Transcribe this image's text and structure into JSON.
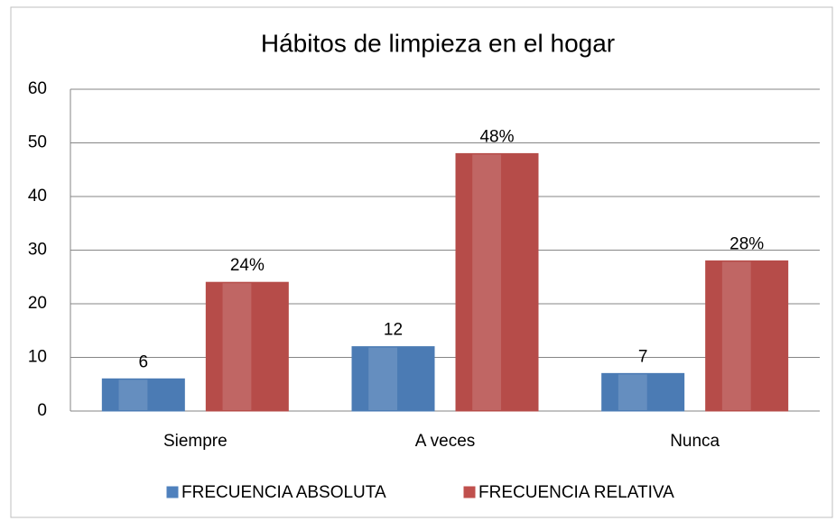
{
  "chart_data": {
    "type": "bar",
    "title": "Hábitos de limpieza en el hogar",
    "categories": [
      "Siempre",
      "A veces",
      "Nunca"
    ],
    "series": [
      {
        "name": "FRECUENCIA ABSOLUTA",
        "color": "#4f81bd",
        "values": [
          6,
          12,
          7
        ]
      },
      {
        "name": "FRECUENCIA RELATIVA",
        "color": "#c0504d",
        "values": [
          24,
          48,
          28
        ],
        "value_labels": [
          "24%",
          "48%",
          "28%"
        ]
      }
    ],
    "ylim": [
      0,
      60
    ],
    "yticks": [
      0,
      10,
      20,
      30,
      40,
      50,
      60
    ],
    "grid": true,
    "legend": "bottom"
  }
}
